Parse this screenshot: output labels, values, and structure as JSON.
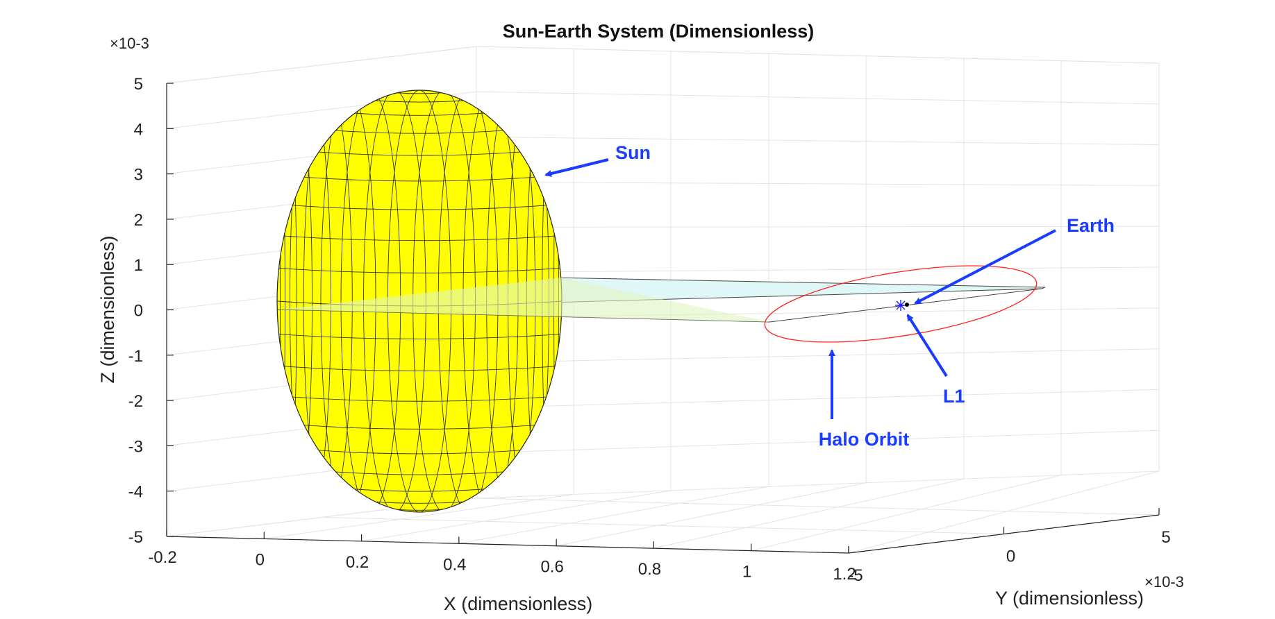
{
  "chart_data": {
    "type": "scatter",
    "projection": "3d",
    "title": "Sun-Earth System (Dimensionless)",
    "xlabel": "X (dimensionless)",
    "ylabel": "Y (dimensionless)",
    "zlabel": "Z (dimensionless)",
    "xlim": [
      -0.2,
      1.2
    ],
    "ylim": [
      -0.005,
      0.005
    ],
    "zlim": [
      -0.005,
      0.005
    ],
    "x_ticks": [
      "-0.2",
      "0",
      "0.2",
      "0.4",
      "0.6",
      "0.8",
      "1",
      "1.2"
    ],
    "y_ticks": [
      "-5",
      "0",
      "5"
    ],
    "z_ticks": [
      "5",
      "4",
      "3",
      "2",
      "1",
      "0",
      "-1",
      "-2",
      "-3",
      "-4",
      "-5"
    ],
    "y_exponent": "×10-3",
    "z_exponent": "×10-3",
    "grid": true,
    "objects": [
      {
        "name": "Sun",
        "kind": "sphere",
        "x": 0.0,
        "y": 0.0,
        "z": 0.0,
        "color": "#ffff00"
      },
      {
        "name": "Earth",
        "kind": "point",
        "x": 1.0,
        "y": 0.0,
        "z": 0.0,
        "color": "#000000"
      },
      {
        "name": "L1",
        "kind": "point",
        "x": 0.99,
        "y": 0.0,
        "z": 0.0,
        "color": "#0000ff"
      },
      {
        "name": "Halo Orbit",
        "kind": "orbit",
        "x": 0.99,
        "y": 0.0,
        "z": 0.0,
        "color": "#ff0000"
      }
    ],
    "ecliptic_plane_color": "#e0f7f7",
    "annotations": [
      {
        "text": "Sun",
        "color": "#1a3cff"
      },
      {
        "text": "Earth",
        "color": "#1a3cff"
      },
      {
        "text": "L1",
        "color": "#1a3cff"
      },
      {
        "text": "Halo Orbit",
        "color": "#1a3cff"
      }
    ]
  }
}
